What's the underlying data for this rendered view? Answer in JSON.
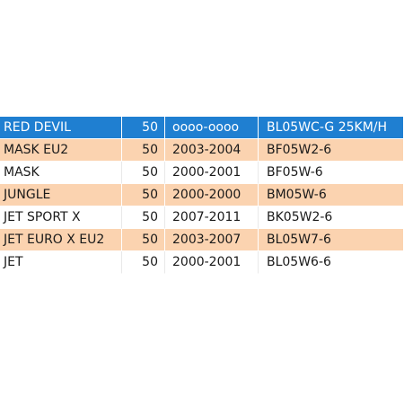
{
  "colors": {
    "selected_row": "#1f7fd1",
    "striped_row": "#fbd3b0",
    "plain_row": "#ffffff"
  },
  "rows": [
    {
      "model": "RED DEVIL",
      "cc": "50",
      "years": "oooo-oooo",
      "code": "BL05WC-G 25KM/H",
      "style": "selected"
    },
    {
      "model": "MASK EU2",
      "cc": "50",
      "years": "2003-2004",
      "code": "BF05W2-6",
      "style": "even"
    },
    {
      "model": "MASK",
      "cc": "50",
      "years": "2000-2001",
      "code": "BF05W-6",
      "style": "odd"
    },
    {
      "model": "JUNGLE",
      "cc": "50",
      "years": "2000-2000",
      "code": "BM05W-6",
      "style": "even"
    },
    {
      "model": "JET SPORT X",
      "cc": "50",
      "years": "2007-2011",
      "code": "BK05W2-6",
      "style": "odd"
    },
    {
      "model": "JET EURO X EU2",
      "cc": "50",
      "years": "2003-2007",
      "code": "BL05W7-6",
      "style": "even"
    },
    {
      "model": "JET",
      "cc": "50",
      "years": "2000-2001",
      "code": "BL05W6-6",
      "style": "odd"
    }
  ]
}
